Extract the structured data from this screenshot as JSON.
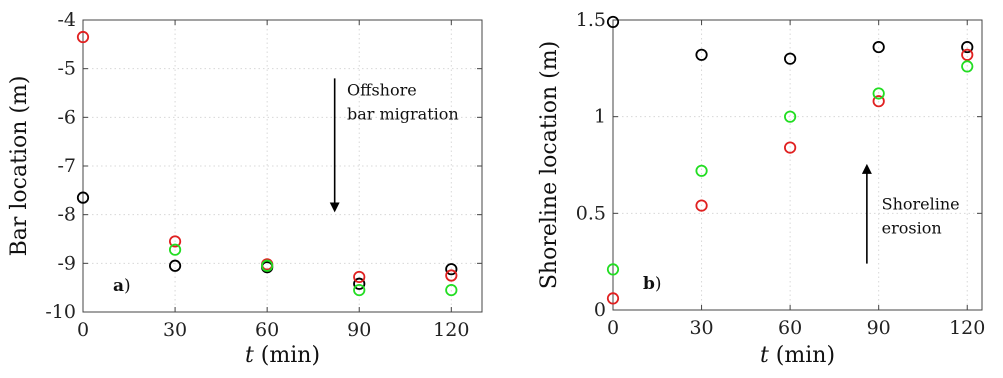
{
  "chart_data": [
    {
      "type": "scatter",
      "panel_label": "a)",
      "xlabel": "t (min)",
      "ylabel": "Bar location (m)",
      "xlim": [
        0,
        130
      ],
      "ylim": [
        -10,
        -4
      ],
      "xticks": [
        "0",
        "30",
        "60",
        "90",
        "120"
      ],
      "yticks": [
        "-4",
        "-5",
        "-6",
        "-7",
        "-8",
        "-9",
        "-10"
      ],
      "grid": true,
      "series": [
        {
          "color": "#000000",
          "points": [
            [
              0,
              -7.65
            ],
            [
              30,
              -9.05
            ],
            [
              60,
              -9.08
            ],
            [
              90,
              -9.42
            ],
            [
              120,
              -9.12
            ]
          ]
        },
        {
          "color": "#e02020",
          "points": [
            [
              0,
              -4.35
            ],
            [
              30,
              -8.55
            ],
            [
              60,
              -9.02
            ],
            [
              90,
              -9.28
            ],
            [
              120,
              -9.25
            ]
          ]
        },
        {
          "color": "#22dd22",
          "points": [
            [
              30,
              -8.72
            ],
            [
              60,
              -9.05
            ],
            [
              90,
              -9.55
            ],
            [
              120,
              -9.55
            ]
          ]
        }
      ],
      "annotation": {
        "lines": [
          "Offshore",
          "bar migration"
        ],
        "arrow": "down",
        "arrow_from": [
          82,
          -5.2
        ],
        "arrow_to": [
          82,
          -7.85
        ],
        "text_anchor": [
          86,
          -5.55
        ]
      }
    },
    {
      "type": "scatter",
      "panel_label": "b)",
      "xlabel": "t (min)",
      "ylabel": "Shoreline location (m)",
      "xlim": [
        0,
        125
      ],
      "ylim": [
        0,
        1.5
      ],
      "xticks": [
        "0",
        "30",
        "60",
        "90",
        "120"
      ],
      "yticks": [
        "0",
        "0.5",
        "1",
        "1.5"
      ],
      "grid": true,
      "series": [
        {
          "color": "#000000",
          "points": [
            [
              0,
              1.49
            ],
            [
              30,
              1.32
            ],
            [
              60,
              1.3
            ],
            [
              90,
              1.36
            ],
            [
              120,
              1.36
            ]
          ]
        },
        {
          "color": "#e02020",
          "points": [
            [
              0,
              0.06
            ],
            [
              30,
              0.54
            ],
            [
              60,
              0.84
            ],
            [
              90,
              1.08
            ],
            [
              120,
              1.32
            ]
          ]
        },
        {
          "color": "#22dd22",
          "points": [
            [
              0,
              0.21
            ],
            [
              30,
              0.72
            ],
            [
              60,
              1.0
            ],
            [
              90,
              1.12
            ],
            [
              120,
              1.26
            ]
          ]
        }
      ],
      "annotation": {
        "lines": [
          "Shoreline",
          "erosion"
        ],
        "arrow": "up",
        "arrow_from": [
          86,
          0.24
        ],
        "arrow_to": [
          86,
          0.73
        ],
        "text_anchor": [
          91,
          0.52
        ]
      }
    }
  ]
}
